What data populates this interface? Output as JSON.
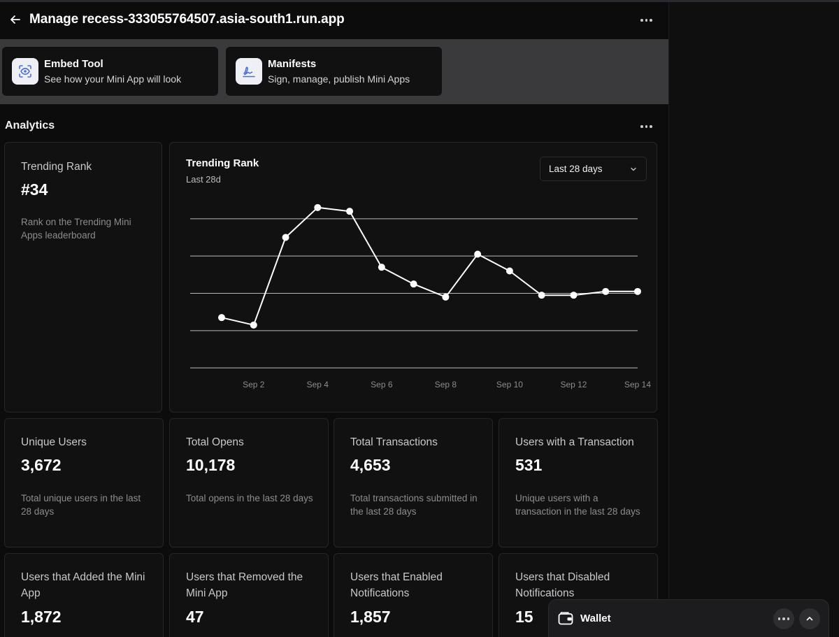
{
  "header": {
    "title": "Manage recess-333055764507.asia-south1.run.app",
    "back_icon": "arrow-left-icon",
    "more_icon": "more-horizontal-icon"
  },
  "tools": [
    {
      "title": "Embed Tool",
      "subtitle": "See how your Mini App will look",
      "icon": "eye-frame-icon"
    },
    {
      "title": "Manifests",
      "subtitle": "Sign, manage, publish Mini Apps",
      "icon": "signature-icon"
    }
  ],
  "analytics": {
    "title": "Analytics",
    "rank_card": {
      "label": "Trending Rank",
      "value": "#34",
      "description": "Rank on the Trending Mini Apps leaderboard"
    },
    "chart_card": {
      "title": "Trending Rank",
      "subtitle": "Last 28d",
      "range_selected": "Last 28 days"
    },
    "stats_row1": [
      {
        "label": "Unique Users",
        "value": "3,672",
        "description": "Total unique users in the last 28 days"
      },
      {
        "label": "Total Opens",
        "value": "10,178",
        "description": "Total opens in the last 28 days"
      },
      {
        "label": "Total Transactions",
        "value": "4,653",
        "description": "Total transactions submitted in the last 28 days"
      },
      {
        "label": "Users with a Transaction",
        "value": "531",
        "description": "Unique users with a transaction in the last 28 days"
      }
    ],
    "stats_row2": [
      {
        "label": "Users that Added the Mini App",
        "value": "1,872"
      },
      {
        "label": "Users that Removed the Mini App",
        "value": "47"
      },
      {
        "label": "Users that Enabled Notifications",
        "value": "1,857"
      },
      {
        "label": "Users that Disabled Notifications",
        "value": "15"
      }
    ]
  },
  "wallet": {
    "label": "Wallet",
    "icon": "wallet-icon"
  },
  "colors": {
    "background": "#0c0c0d",
    "card": "#111112",
    "card_border": "#262629",
    "tools_band": "#3a3a3c",
    "line": "#ffffff"
  },
  "chart_data": {
    "type": "line",
    "title": "Trending Rank",
    "subtitle": "Last 28d",
    "x": [
      "Sep 1",
      "Sep 2",
      "Sep 3",
      "Sep 4",
      "Sep 5",
      "Sep 6",
      "Sep 7",
      "Sep 8",
      "Sep 9",
      "Sep 10",
      "Sep 11",
      "Sep 12",
      "Sep 13",
      "Sep 14"
    ],
    "x_tick_labels": [
      "Sep 2",
      "Sep 4",
      "Sep 6",
      "Sep 8",
      "Sep 10",
      "Sep 12",
      "Sep 14"
    ],
    "series": [
      {
        "values": [
          56.5,
          58.5,
          35,
          27,
          28,
          43,
          47.5,
          51,
          39.5,
          44,
          50.5,
          50.5,
          49.5,
          49.5
        ]
      }
    ],
    "ylim": [
      20,
      80
    ],
    "y_inverted": true,
    "y_gridlines": [
      30,
      40,
      50,
      60,
      70
    ],
    "grid": true,
    "legend": "none"
  }
}
